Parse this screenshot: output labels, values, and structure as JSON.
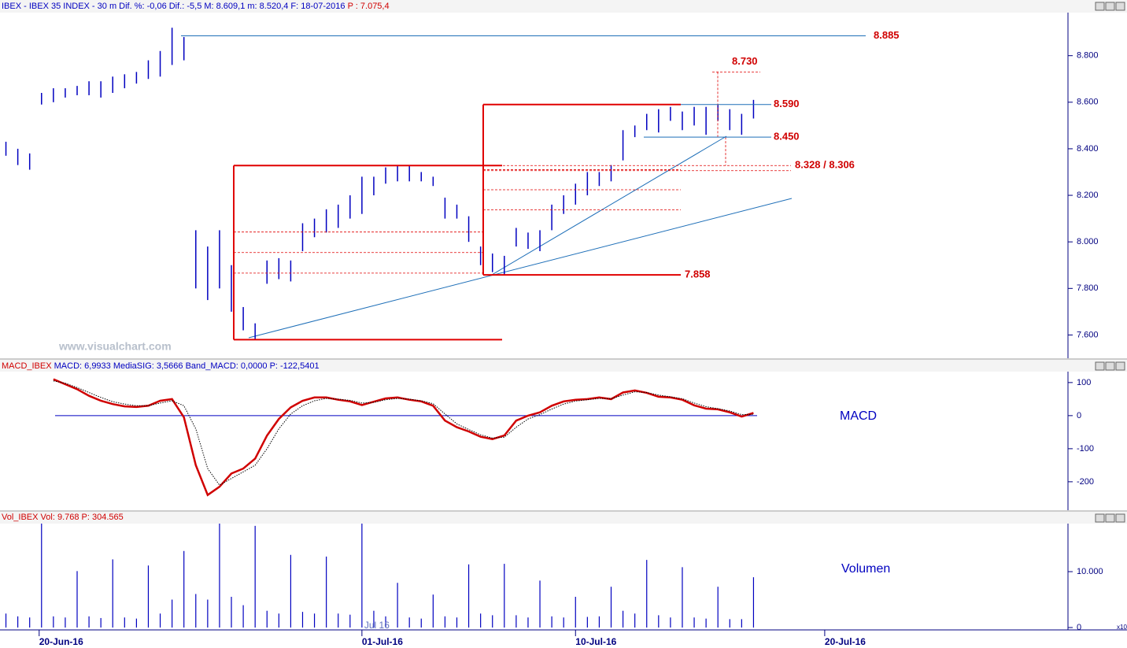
{
  "watermark": "www.visualchart.com",
  "chart_data": [
    {
      "type": "range-bar",
      "title": [
        "IBEX - IBEX 35 INDEX - 30 m  Dif. %: -0,06  Dif.: -5,5  M: 8.609,1  m: 8.520,4  F: 18-07-2016",
        "P : 7.075,4"
      ],
      "color": "#0000c0",
      "high": [
        8.43,
        8.4,
        8.38,
        8.64,
        8.66,
        8.66,
        8.67,
        8.69,
        8.69,
        8.71,
        8.72,
        8.73,
        8.78,
        8.82,
        8.92,
        8.88,
        8.05,
        7.98,
        8.05,
        7.9,
        7.72,
        7.65,
        7.92,
        7.93,
        7.92,
        8.08,
        8.1,
        8.14,
        8.16,
        8.2,
        8.28,
        8.28,
        8.32,
        8.33,
        8.33,
        8.3,
        8.28,
        8.19,
        8.16,
        8.11,
        7.98,
        7.95,
        7.94,
        8.06,
        8.04,
        8.05,
        8.16,
        8.2,
        8.25,
        8.3,
        8.3,
        8.33,
        8.48,
        8.5,
        8.55,
        8.57,
        8.58,
        8.56,
        8.58,
        8.58,
        8.59,
        8.57,
        8.55,
        8.61
      ],
      "low": [
        8.37,
        8.33,
        8.31,
        8.59,
        8.6,
        8.62,
        8.63,
        8.63,
        8.62,
        8.64,
        8.66,
        8.68,
        8.7,
        8.71,
        8.76,
        8.78,
        7.8,
        7.75,
        7.8,
        7.7,
        7.62,
        7.58,
        7.82,
        7.84,
        7.83,
        7.96,
        8.02,
        8.04,
        8.06,
        8.1,
        8.12,
        8.2,
        8.25,
        8.26,
        8.26,
        8.26,
        8.24,
        8.1,
        8.1,
        8.0,
        7.9,
        7.87,
        7.86,
        7.98,
        7.97,
        7.96,
        8.05,
        8.12,
        8.16,
        8.2,
        8.24,
        8.26,
        8.35,
        8.45,
        8.48,
        8.47,
        8.52,
        8.48,
        8.5,
        8.46,
        8.52,
        8.48,
        8.46,
        8.53
      ],
      "ylim": [
        7.5,
        8.985
      ],
      "yticks": [
        {
          "value": 7.6,
          "label": "7.600"
        },
        {
          "value": 7.8,
          "label": "7.800"
        },
        {
          "value": 8.0,
          "label": "8.000"
        },
        {
          "value": 8.2,
          "label": "8.200"
        },
        {
          "value": 8.4,
          "label": "8.400"
        },
        {
          "value": 8.6,
          "label": "8.600"
        },
        {
          "value": 8.8,
          "label": "8.800"
        }
      ],
      "annotations": [
        {
          "label": "8.885",
          "value": 8.885
        },
        {
          "label": "8.730",
          "value": 8.73
        },
        {
          "label": "8.590",
          "value": 8.59
        },
        {
          "label": "8.450",
          "value": 8.45
        },
        {
          "label": "8.328 / 8.306",
          "values": [
            8.328,
            8.306
          ]
        },
        {
          "label": "7.858",
          "value": 7.858
        }
      ]
    },
    {
      "type": "line",
      "title": [
        "MACD_IBEX",
        "MACD: 6,9933  MediaSIG: 3,5666  Band_MACD: 0,0000  P: -122,5401"
      ],
      "label": "MACD",
      "series": [
        {
          "name": "MACD",
          "color": "#d00000",
          "values": [
            null,
            null,
            null,
            null,
            110,
            95,
            80,
            60,
            45,
            35,
            28,
            26,
            30,
            45,
            50,
            -5,
            -150,
            -240,
            -215,
            -175,
            -160,
            -130,
            -60,
            -10,
            25,
            45,
            55,
            55,
            48,
            43,
            32,
            42,
            52,
            55,
            48,
            43,
            30,
            -15,
            -35,
            -48,
            -64,
            -71,
            -60,
            -15,
            0,
            10,
            30,
            43,
            48,
            50,
            55,
            50,
            70,
            76,
            69,
            57,
            55,
            48,
            31,
            21,
            19,
            10,
            -3,
            8
          ]
        },
        {
          "name": "MediaSIG",
          "color": "#000000",
          "values": [
            null,
            null,
            null,
            null,
            105,
            98,
            85,
            70,
            55,
            42,
            35,
            30,
            30,
            38,
            45,
            30,
            -40,
            -160,
            -210,
            -190,
            -170,
            -150,
            -100,
            -40,
            5,
            30,
            45,
            52,
            50,
            46,
            38,
            40,
            48,
            52,
            50,
            45,
            36,
            5,
            -25,
            -42,
            -58,
            -68,
            -65,
            -35,
            -10,
            3,
            20,
            35,
            44,
            48,
            52,
            51,
            62,
            72,
            70,
            62,
            57,
            51,
            38,
            27,
            21,
            14,
            3,
            4
          ]
        }
      ],
      "ylim": [
        -286,
        133
      ],
      "yticks": [
        -200,
        -100,
        0,
        100
      ]
    },
    {
      "type": "bar",
      "title": [
        "Vol_IBEX",
        "Vol: 9.768  P: 304.565"
      ],
      "label": "Volumen",
      "unit_label": "x10",
      "color": "#0000c0",
      "values": [
        2500,
        2000,
        1800,
        18600,
        2000,
        1800,
        10100,
        2000,
        1700,
        12200,
        1800,
        1600,
        11100,
        2500,
        5000,
        13700,
        6000,
        5000,
        18600,
        5500,
        4000,
        18200,
        3000,
        2500,
        13000,
        2800,
        2500,
        12700,
        2500,
        2300,
        18600,
        3000,
        2000,
        8000,
        1800,
        1600,
        5900,
        2000,
        1800,
        11300,
        2500,
        2200,
        11400,
        2200,
        1800,
        8400,
        2000,
        1800,
        5500,
        1900,
        2000,
        7300,
        3000,
        2500,
        12100,
        2200,
        1800,
        10800,
        1800,
        1600,
        7300,
        1500,
        1500,
        9000
      ],
      "ylim": [
        0,
        18600
      ],
      "yticks": [
        0,
        {
          "value": 10000,
          "label": "10.000"
        }
      ],
      "xlim": [
        0,
        90
      ],
      "xticks": [
        {
          "value": 3.3,
          "label": "20-Jun-16"
        },
        {
          "value": 30.5,
          "label": "01-Jul-16"
        },
        {
          "value": 48.5,
          "label": "10-Jul-16"
        },
        {
          "value": 69.5,
          "label": "20-Jul-16"
        }
      ],
      "month_label": "Jul 16"
    }
  ]
}
